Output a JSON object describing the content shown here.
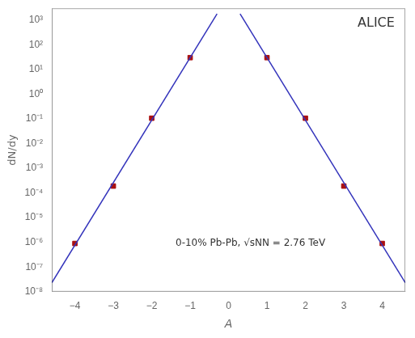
{
  "chart_data": {
    "type": "scatter",
    "title": "ALICE",
    "annotations": [
      "0-10% Pb-Pb, √sNN = 2.76 TeV"
    ],
    "x_label": "A",
    "y_label": "dN/dy",
    "log": "y",
    "grid": false,
    "xlim": [
      -4.6,
      4.6
    ],
    "xticks": [
      {
        "value": -4,
        "label": "−4"
      },
      {
        "value": -3,
        "label": "−3"
      },
      {
        "value": -2,
        "label": "−2"
      },
      {
        "value": -1,
        "label": "−1"
      },
      0,
      1,
      2,
      3,
      4
    ],
    "ylim": [
      1e-08,
      3000
    ],
    "yticks": [
      {
        "value": 1e-08,
        "label": "10⁻⁸"
      },
      {
        "value": 1e-07,
        "label": "10⁻⁷"
      },
      {
        "value": 1e-06,
        "label": "10⁻⁶"
      },
      {
        "value": 1e-05,
        "label": "10⁻⁵"
      },
      {
        "value": 0.0001,
        "label": "10⁻⁴"
      },
      {
        "value": 0.001,
        "label": "10⁻³"
      },
      {
        "value": 0.01,
        "label": "10⁻²"
      },
      {
        "value": 0.1,
        "label": "10⁻¹"
      },
      {
        "value": 1,
        "label": "10⁰"
      },
      {
        "value": 10,
        "label": "10¹"
      },
      {
        "value": 100,
        "label": "10²"
      },
      {
        "value": 1000,
        "label": "10³"
      }
    ],
    "series": [
      {
        "type": "line",
        "color": "#3333bb",
        "x": [
          0.3,
          4.6
        ],
        "values": [
          1791.42,
          2.33167e-08
        ]
      },
      {
        "type": "line",
        "color": "#3333bb",
        "x": [
          -4.6,
          -0.3
        ],
        "values": [
          2.33167e-08,
          1791.42
        ]
      },
      {
        "type": "scatter",
        "marker": "square",
        "color": "#aa1111",
        "x": [
          1,
          2,
          3,
          4
        ],
        "values": [
          30.0,
          0.106,
          0.00019,
          9e-07
        ],
        "y_err": [
          1.8,
          0.00636,
          1.14e-05,
          5.4e-08
        ],
        "x_err": [
          0.04,
          0.04,
          0.04,
          0.04
        ]
      },
      {
        "type": "scatter",
        "marker": "square",
        "color": "#aa1111",
        "x": [
          -1,
          -2,
          -3,
          -4
        ],
        "values": [
          30.0,
          0.106,
          0.00019,
          9e-07
        ],
        "y_err": [
          1.8,
          0.00636,
          1.14e-05,
          5.4e-08
        ],
        "x_err": [
          0.04,
          0.04,
          0.04,
          0.04
        ]
      }
    ]
  }
}
